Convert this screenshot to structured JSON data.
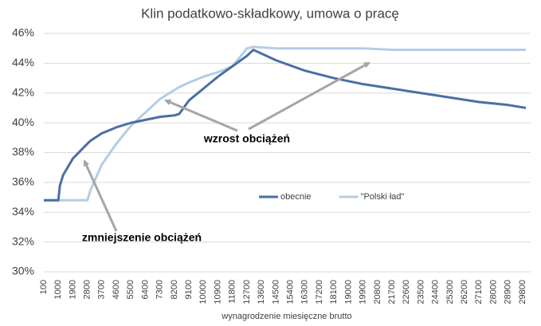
{
  "chart_data": {
    "type": "line",
    "title": "Klin podatkowo-składkowy, umowa o pracę",
    "x_label": "wynagrodzenie miesięczne brutto",
    "x": [
      100,
      1000,
      1100,
      1300,
      1900,
      2800,
      3000,
      3700,
      4600,
      5500,
      6400,
      7300,
      8200,
      8500,
      9100,
      10000,
      10900,
      11800,
      12700,
      13100,
      14500,
      16300,
      18100,
      19900,
      21700,
      23500,
      25300,
      27100,
      28900,
      30000
    ],
    "series": [
      {
        "name": "obecnie",
        "color": "#4a6fa5",
        "values": [
          34.8,
          34.8,
          35.8,
          36.5,
          37.6,
          38.6,
          38.8,
          39.3,
          39.7,
          40.0,
          40.2,
          40.4,
          40.5,
          40.6,
          41.5,
          42.3,
          43.1,
          43.8,
          44.5,
          44.9,
          44.2,
          43.5,
          43.0,
          42.6,
          42.3,
          42.0,
          41.7,
          41.4,
          41.2,
          41.0
        ]
      },
      {
        "name": "\"Polski ład\"",
        "color": "#b4cde4",
        "values": [
          34.8,
          34.8,
          34.8,
          34.8,
          34.8,
          34.8,
          35.5,
          37.2,
          38.6,
          39.8,
          40.7,
          41.6,
          42.2,
          42.4,
          42.7,
          43.1,
          43.4,
          43.8,
          45.0,
          45.1,
          45.0,
          45.0,
          45.0,
          45.0,
          44.9,
          44.9,
          44.9,
          44.9,
          44.9,
          44.9
        ]
      }
    ],
    "xlim": [
      100,
      30000
    ],
    "xticks": [
      100,
      1000,
      1900,
      2800,
      3700,
      4600,
      5500,
      6400,
      7300,
      8200,
      9100,
      10000,
      10900,
      11800,
      12700,
      13600,
      14500,
      15400,
      16300,
      17200,
      18100,
      19000,
      19900,
      20800,
      21700,
      22600,
      23500,
      24400,
      25300,
      26200,
      27100,
      28000,
      28900,
      29800
    ],
    "ylim": [
      30,
      46
    ],
    "yticks": [
      {
        "value": 30,
        "label": "30%"
      },
      {
        "value": 32,
        "label": "32%"
      },
      {
        "value": 34,
        "label": "34%"
      },
      {
        "value": 36,
        "label": "36%"
      },
      {
        "value": 38,
        "label": "38%"
      },
      {
        "value": 40,
        "label": "40%"
      },
      {
        "value": 42,
        "label": "42%"
      },
      {
        "value": 44,
        "label": "44%"
      },
      {
        "value": 46,
        "label": "46%"
      }
    ],
    "grid": true,
    "legend": "center",
    "annotations": [
      "wzrost obciążeń",
      "zmniejszenie obciążeń"
    ]
  }
}
